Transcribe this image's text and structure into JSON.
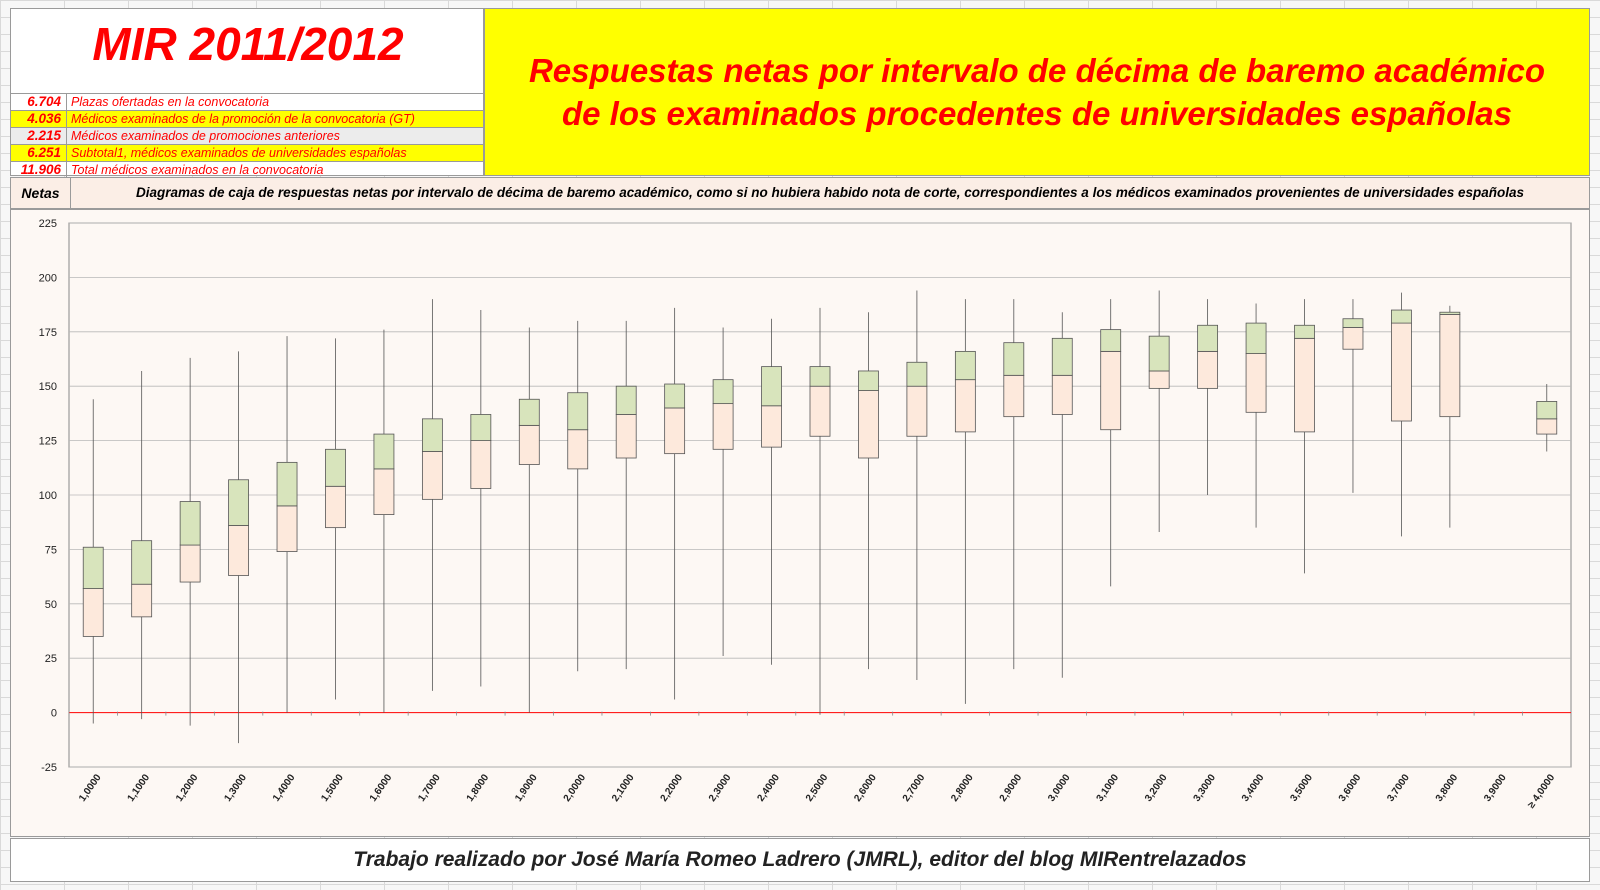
{
  "header": {
    "title": "MIR 2011/2012",
    "subtitle": "Respuestas netas por intervalo de décima de baremo académico\nde los examinados procedentes de universidades españolas",
    "stats": [
      {
        "value": "6.704",
        "label": "Plazas ofertadas en la convocatoria"
      },
      {
        "value": "4.036",
        "label": "Médicos examinados de la promoción de la convocatoria (GT)"
      },
      {
        "value": "2.215",
        "label": "Médicos examinados de promociones anteriores"
      },
      {
        "value": "6.251",
        "label": "Subtotal1, médicos examinados de universidades españolas"
      },
      {
        "value": "11.906",
        "label": "Total médicos examinados en la convocatoria"
      }
    ]
  },
  "axis_header": {
    "label": "Netas",
    "caption": "Diagramas de caja de respuestas netas por intervalo de décima de baremo académico, como si no hubiera habido nota de corte, correspondientes a los médicos examinados provenientes de universidades españolas"
  },
  "footer": {
    "credit": "Trabajo realizado por José María Romeo Ladrero (JMRL), editor del blog MIRentrelazados"
  },
  "colors": {
    "lower_box": "#fde9dc",
    "upper_box": "#d8e4bc",
    "zero_line": "#ff0000",
    "title_red": "#ff0000",
    "header_yellow": "#ffff00"
  },
  "chart_data": {
    "type": "boxplot",
    "ylabel": "Netas",
    "ylim": [
      -25,
      225
    ],
    "yticks": [
      -25,
      0,
      25,
      50,
      75,
      100,
      125,
      150,
      175,
      200,
      225
    ],
    "grid": true,
    "categories": [
      "1,0000",
      "1,1000",
      "1,2000",
      "1,3000",
      "1,4000",
      "1,5000",
      "1,6000",
      "1,7000",
      "1,8000",
      "1,9000",
      "2,0000",
      "2,1000",
      "2,2000",
      "2,3000",
      "2,4000",
      "2,5000",
      "2,6000",
      "2,7000",
      "2,8000",
      "2,9000",
      "3,0000",
      "3,1000",
      "3,2000",
      "3,3000",
      "3,4000",
      "3,5000",
      "3,6000",
      "3,7000",
      "3,8000",
      "3,9000",
      "≥ 4,0000"
    ],
    "boxes": [
      {
        "min": -5,
        "q1": 35,
        "median": 57,
        "q3": 76,
        "max": 144
      },
      {
        "min": -3,
        "q1": 44,
        "median": 59,
        "q3": 79,
        "max": 157
      },
      {
        "min": -6,
        "q1": 60,
        "median": 77,
        "q3": 97,
        "max": 163
      },
      {
        "min": -14,
        "q1": 63,
        "median": 86,
        "q3": 107,
        "max": 166
      },
      {
        "min": 0,
        "q1": 74,
        "median": 95,
        "q3": 115,
        "max": 173
      },
      {
        "min": 6,
        "q1": 85,
        "median": 104,
        "q3": 121,
        "max": 172
      },
      {
        "min": 0,
        "q1": 91,
        "median": 112,
        "q3": 128,
        "max": 176
      },
      {
        "min": 10,
        "q1": 98,
        "median": 120,
        "q3": 135,
        "max": 190
      },
      {
        "min": 12,
        "q1": 103,
        "median": 125,
        "q3": 137,
        "max": 185
      },
      {
        "min": 0,
        "q1": 114,
        "median": 132,
        "q3": 144,
        "max": 177
      },
      {
        "min": 19,
        "q1": 112,
        "median": 130,
        "q3": 147,
        "max": 180
      },
      {
        "min": 20,
        "q1": 117,
        "median": 137,
        "q3": 150,
        "max": 180
      },
      {
        "min": 6,
        "q1": 119,
        "median": 140,
        "q3": 151,
        "max": 186
      },
      {
        "min": 26,
        "q1": 121,
        "median": 142,
        "q3": 153,
        "max": 177
      },
      {
        "min": 22,
        "q1": 122,
        "median": 141,
        "q3": 159,
        "max": 181
      },
      {
        "min": -1,
        "q1": 127,
        "median": 150,
        "q3": 159,
        "max": 186
      },
      {
        "min": 20,
        "q1": 117,
        "median": 148,
        "q3": 157,
        "max": 184
      },
      {
        "min": 15,
        "q1": 127,
        "median": 150,
        "q3": 161,
        "max": 194
      },
      {
        "min": 4,
        "q1": 129,
        "median": 153,
        "q3": 166,
        "max": 190
      },
      {
        "min": 20,
        "q1": 136,
        "median": 155,
        "q3": 170,
        "max": 190
      },
      {
        "min": 16,
        "q1": 137,
        "median": 155,
        "q3": 172,
        "max": 184
      },
      {
        "min": 58,
        "q1": 130,
        "median": 166,
        "q3": 176,
        "max": 190
      },
      {
        "min": 83,
        "q1": 149,
        "median": 157,
        "q3": 173,
        "max": 194
      },
      {
        "min": 100,
        "q1": 149,
        "median": 166,
        "q3": 178,
        "max": 190
      },
      {
        "min": 85,
        "q1": 138,
        "median": 165,
        "q3": 179,
        "max": 188
      },
      {
        "min": 64,
        "q1": 129,
        "median": 172,
        "q3": 178,
        "max": 190
      },
      {
        "min": 101,
        "q1": 167,
        "median": 177,
        "q3": 181,
        "max": 190
      },
      {
        "min": 81,
        "q1": 134,
        "median": 179,
        "q3": 185,
        "max": 193
      },
      {
        "min": 85,
        "q1": 136,
        "median": 183,
        "q3": 184,
        "max": 187
      },
      null,
      {
        "min": 120,
        "q1": 128,
        "median": 135,
        "q3": 143,
        "max": 151
      }
    ]
  }
}
